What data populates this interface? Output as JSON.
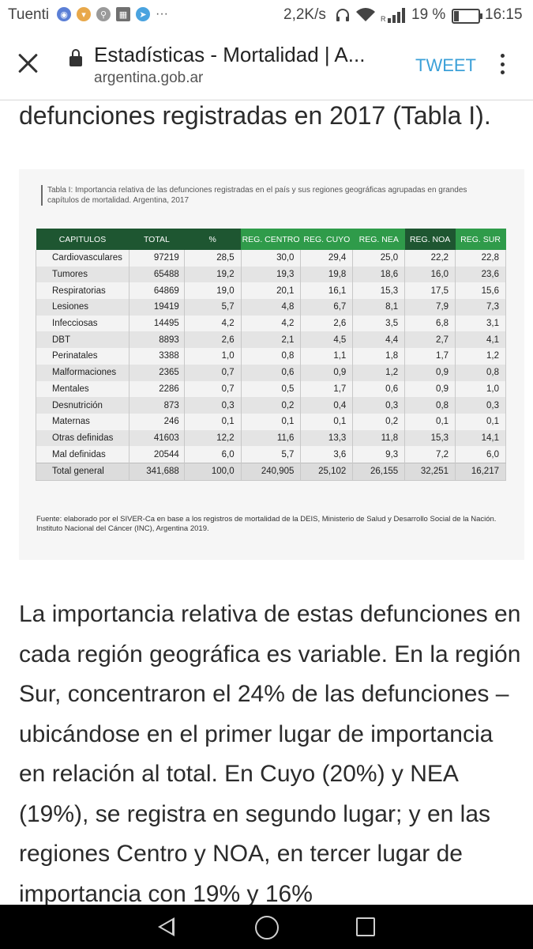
{
  "status_bar": {
    "carrier": "Tuenti",
    "speed": "2,2K/s",
    "battery_percent": "19 %",
    "battery_level": 0.19,
    "time": "16:15",
    "notification_icons": [
      "vpn-icon",
      "shield-icon",
      "bike-icon",
      "photo-icon",
      "telegram-icon"
    ],
    "more": "···",
    "roaming": "R"
  },
  "header": {
    "page_title": "Estadísticas - Mortalidad | A...",
    "url": "argentina.gob.ar",
    "tweet_label": "TWEET"
  },
  "article": {
    "partial_line": "defunciones registradas en 2017 (Tabla I).",
    "figure": {
      "caption": "Tabla I: Importancia relativa de las defunciones registradas en el país y sus regiones geográficas agrupadas en grandes capítulos de mortalidad. Argentina, 2017",
      "columns": [
        "CAPITULOS",
        "TOTAL",
        "%",
        "REG. CENTRO",
        "REG. CUYO",
        "REG. NEA",
        "REG. NOA",
        "REG. SUR"
      ],
      "rows": [
        [
          "Cardiovasculares",
          "97219",
          "28,5",
          "30,0",
          "29,4",
          "25,0",
          "22,2",
          "22,8"
        ],
        [
          "Tumores",
          "65488",
          "19,2",
          "19,3",
          "19,8",
          "18,6",
          "16,0",
          "23,6"
        ],
        [
          "Respiratorias",
          "64869",
          "19,0",
          "20,1",
          "16,1",
          "15,3",
          "17,5",
          "15,6"
        ],
        [
          "Lesiones",
          "19419",
          "5,7",
          "4,8",
          "6,7",
          "8,1",
          "7,9",
          "7,3"
        ],
        [
          "Infecciosas",
          "14495",
          "4,2",
          "4,2",
          "2,6",
          "3,5",
          "6,8",
          "3,1"
        ],
        [
          "DBT",
          "8893",
          "2,6",
          "2,1",
          "4,5",
          "4,4",
          "2,7",
          "4,1"
        ],
        [
          "Perinatales",
          "3388",
          "1,0",
          "0,8",
          "1,1",
          "1,8",
          "1,7",
          "1,2"
        ],
        [
          "Malformaciones",
          "2365",
          "0,7",
          "0,6",
          "0,9",
          "1,2",
          "0,9",
          "0,8"
        ],
        [
          "Mentales",
          "2286",
          "0,7",
          "0,5",
          "1,7",
          "0,6",
          "0,9",
          "1,0"
        ],
        [
          "Desnutrición",
          "873",
          "0,3",
          "0,2",
          "0,4",
          "0,3",
          "0,8",
          "0,3"
        ],
        [
          "Maternas",
          "246",
          "0,1",
          "0,1",
          "0,1",
          "0,2",
          "0,1",
          "0,1"
        ],
        [
          "Otras definidas",
          "41603",
          "12,2",
          "11,6",
          "13,3",
          "11,8",
          "15,3",
          "14,1"
        ],
        [
          "Mal definidas",
          "20544",
          "6,0",
          "5,7",
          "3,6",
          "9,3",
          "7,2",
          "6,0"
        ],
        [
          "Total general",
          "341,688",
          "100,0",
          "240,905",
          "25,102",
          "26,155",
          "32,251",
          "16,217"
        ]
      ],
      "source": "Fuente: elaborado por el SIVER-Ca en base a los registros de mortalidad de la DEIS, Ministerio de Salud y Desarrollo Social de la Nación. Instituto Nacional del Cáncer (INC), Argentina 2019."
    },
    "paragraph": "La importancia relativa de estas defunciones en cada región geográfica es variable. En la región Sur, concentraron el 24% de las defunciones – ubicándose en el primer lugar de importancia en relación al total. En Cuyo (20%) y NEA (19%), se registra en segundo lugar; y en las regiones Centro y NOA, en tercer lugar de importancia con 19% y 16%"
  },
  "colors": {
    "header_dark_green": "#1e5631",
    "header_bright_green": "#2f9b4a",
    "tweet_blue": "#3ba0d8"
  }
}
